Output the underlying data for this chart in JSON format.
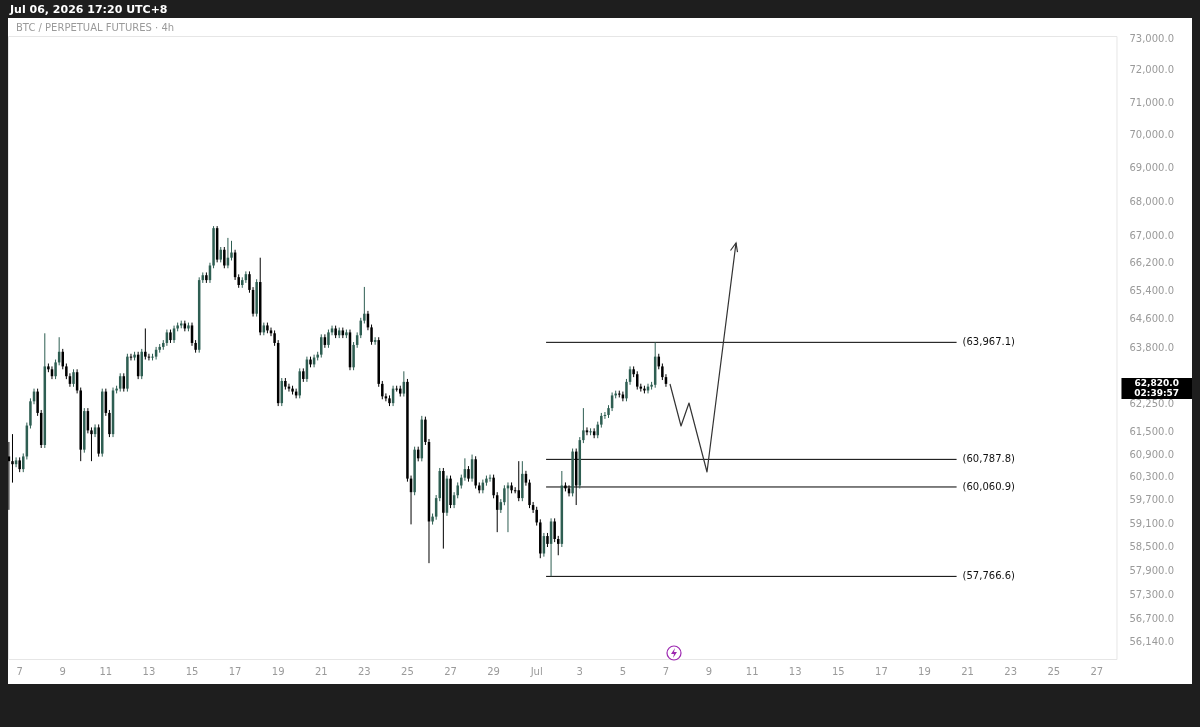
{
  "chart_data": {
    "type": "candlestick",
    "title": "BTC / PERPETUAL FUTURES · 4h",
    "subtitle": "Jul 06, 2026 17:20 UTC+8",
    "log": "y",
    "xlim": [
      "2026-06-06T11:00",
      "2026-07-27T23:00"
    ],
    "xticks": [
      {
        "value": "2026-06-07",
        "label": "7"
      },
      {
        "value": "2026-06-09",
        "label": "9"
      },
      {
        "value": "2026-06-11",
        "label": "11"
      },
      {
        "value": "2026-06-13",
        "label": "13"
      },
      {
        "value": "2026-06-15",
        "label": "15"
      },
      {
        "value": "2026-06-17",
        "label": "17"
      },
      {
        "value": "2026-06-19",
        "label": "19"
      },
      {
        "value": "2026-06-21",
        "label": "21"
      },
      {
        "value": "2026-06-23",
        "label": "23"
      },
      {
        "value": "2026-06-25",
        "label": "25"
      },
      {
        "value": "2026-06-27",
        "label": "27"
      },
      {
        "value": "2026-06-29",
        "label": "29"
      },
      {
        "value": "2026-07-01",
        "label": "Jul"
      },
      {
        "value": "2026-07-03",
        "label": "3"
      },
      {
        "value": "2026-07-05",
        "label": "5"
      },
      {
        "value": "2026-07-07",
        "label": "7"
      },
      {
        "value": "2026-07-09",
        "label": "9"
      },
      {
        "value": "2026-07-11",
        "label": "11"
      },
      {
        "value": "2026-07-13",
        "label": "13"
      },
      {
        "value": "2026-07-15",
        "label": "15"
      },
      {
        "value": "2026-07-17",
        "label": "17"
      },
      {
        "value": "2026-07-19",
        "label": "19"
      },
      {
        "value": "2026-07-21",
        "label": "21"
      },
      {
        "value": "2026-07-23",
        "label": "23"
      },
      {
        "value": "2026-07-25",
        "label": "25"
      },
      {
        "value": "2026-07-27",
        "label": "27"
      }
    ],
    "ylim": [
      55700,
      73100
    ],
    "yticks": [
      {
        "value": 73000,
        "label": "73,000.0"
      },
      {
        "value": 72000,
        "label": "72,000.0"
      },
      {
        "value": 71000,
        "label": "71,000.0"
      },
      {
        "value": 70000,
        "label": "70,000.0"
      },
      {
        "value": 69000,
        "label": "69,000.0"
      },
      {
        "value": 68000,
        "label": "68,000.0"
      },
      {
        "value": 67000,
        "label": "67,000.0"
      },
      {
        "value": 66200,
        "label": "66,200.0"
      },
      {
        "value": 65400,
        "label": "65,400.0"
      },
      {
        "value": 64600,
        "label": "64,600.0"
      },
      {
        "value": 63800,
        "label": "63,800.0"
      },
      {
        "value": 62250,
        "label": "62,250.0"
      },
      {
        "value": 61500,
        "label": "61,500.0"
      },
      {
        "value": 60900,
        "label": "60,900.0"
      },
      {
        "value": 60300,
        "label": "60,300.0"
      },
      {
        "value": 59700,
        "label": "59,700.0"
      },
      {
        "value": 59100,
        "label": "59,100.0"
      },
      {
        "value": 58500,
        "label": "58,500.0"
      },
      {
        "value": 57900,
        "label": "57,900.0"
      },
      {
        "value": 57300,
        "label": "57,300.0"
      },
      {
        "value": 56700,
        "label": "56,700.0"
      },
      {
        "value": 56140,
        "label": "56,140.0"
      }
    ],
    "ref_lines": [
      {
        "axis": "y",
        "value": 63967.1,
        "label": "(63,967.1)",
        "color": "#000000"
      },
      {
        "axis": "y",
        "value": 60787.8,
        "label": "(60,787.8)",
        "color": "#000000"
      },
      {
        "axis": "y",
        "value": 60060.9,
        "label": "(60,060.9)",
        "color": "#000000"
      },
      {
        "axis": "y",
        "value": 57766.6,
        "label": "(57,766.6)",
        "color": "#000000"
      }
    ],
    "annotations": [
      "62,820.0",
      "02:39:57"
    ],
    "series": [
      {
        "x": [
          "2026-06-06T12:00",
          "2026-06-06T16:00",
          "2026-06-06T20:00",
          "2026-06-07T00:00",
          "2026-06-07T04:00",
          "2026-06-07T08:00",
          "2026-06-07T12:00",
          "2026-06-07T16:00",
          "2026-06-07T20:00",
          "2026-06-08T00:00",
          "2026-06-08T04:00",
          "2026-06-08T08:00",
          "2026-06-08T12:00",
          "2026-06-08T16:00",
          "2026-06-08T20:00",
          "2026-06-09T00:00",
          "2026-06-09T04:00",
          "2026-06-09T08:00",
          "2026-06-09T12:00",
          "2026-06-09T16:00",
          "2026-06-09T20:00",
          "2026-06-10T00:00",
          "2026-06-10T04:00",
          "2026-06-10T08:00",
          "2026-06-10T12:00",
          "2026-06-10T16:00",
          "2026-06-10T20:00",
          "2026-06-11T00:00",
          "2026-06-11T04:00",
          "2026-06-11T08:00",
          "2026-06-11T12:00",
          "2026-06-11T16:00",
          "2026-06-11T20:00",
          "2026-06-12T00:00",
          "2026-06-12T04:00",
          "2026-06-12T08:00",
          "2026-06-12T12:00",
          "2026-06-12T16:00",
          "2026-06-12T20:00",
          "2026-06-13T00:00",
          "2026-06-13T04:00",
          "2026-06-13T08:00",
          "2026-06-13T12:00",
          "2026-06-13T16:00",
          "2026-06-13T20:00",
          "2026-06-14T00:00",
          "2026-06-14T04:00",
          "2026-06-14T08:00",
          "2026-06-14T12:00",
          "2026-06-14T16:00",
          "2026-06-14T20:00",
          "2026-06-15T00:00",
          "2026-06-15T04:00",
          "2026-06-15T08:00",
          "2026-06-15T12:00",
          "2026-06-15T16:00",
          "2026-06-15T20:00",
          "2026-06-16T00:00",
          "2026-06-16T04:00",
          "2026-06-16T08:00",
          "2026-06-16T12:00",
          "2026-06-16T16:00",
          "2026-06-16T20:00",
          "2026-06-17T00:00",
          "2026-06-17T04:00",
          "2026-06-17T08:00",
          "2026-06-17T12:00",
          "2026-06-17T16:00",
          "2026-06-17T20:00",
          "2026-06-18T00:00",
          "2026-06-18T04:00",
          "2026-06-18T08:00",
          "2026-06-18T12:00",
          "2026-06-18T16:00",
          "2026-06-18T20:00",
          "2026-06-19T00:00",
          "2026-06-19T04:00",
          "2026-06-19T08:00",
          "2026-06-19T12:00",
          "2026-06-19T16:00",
          "2026-06-19T20:00",
          "2026-06-20T00:00",
          "2026-06-20T04:00",
          "2026-06-20T08:00",
          "2026-06-20T12:00",
          "2026-06-20T16:00",
          "2026-06-20T20:00",
          "2026-06-21T00:00",
          "2026-06-21T04:00",
          "2026-06-21T08:00",
          "2026-06-21T12:00",
          "2026-06-21T16:00",
          "2026-06-21T20:00",
          "2026-06-22T00:00",
          "2026-06-22T04:00",
          "2026-06-22T08:00",
          "2026-06-22T12:00",
          "2026-06-22T16:00",
          "2026-06-22T20:00",
          "2026-06-23T00:00",
          "2026-06-23T04:00",
          "2026-06-23T08:00",
          "2026-06-23T12:00",
          "2026-06-23T16:00",
          "2026-06-23T20:00",
          "2026-06-24T00:00",
          "2026-06-24T04:00",
          "2026-06-24T08:00",
          "2026-06-24T12:00",
          "2026-06-24T16:00",
          "2026-06-24T20:00",
          "2026-06-25T00:00",
          "2026-06-25T04:00",
          "2026-06-25T08:00",
          "2026-06-25T12:00",
          "2026-06-25T16:00",
          "2026-06-25T20:00",
          "2026-06-26T00:00",
          "2026-06-26T04:00",
          "2026-06-26T08:00",
          "2026-06-26T12:00",
          "2026-06-26T16:00",
          "2026-06-26T20:00",
          "2026-06-27T00:00",
          "2026-06-27T04:00",
          "2026-06-27T08:00",
          "2026-06-27T12:00",
          "2026-06-27T16:00",
          "2026-06-27T20:00",
          "2026-06-28T00:00",
          "2026-06-28T04:00",
          "2026-06-28T08:00",
          "2026-06-28T12:00",
          "2026-06-28T16:00",
          "2026-06-28T20:00",
          "2026-06-29T00:00",
          "2026-06-29T04:00",
          "2026-06-29T08:00",
          "2026-06-29T12:00",
          "2026-06-29T16:00",
          "2026-06-29T20:00",
          "2026-06-30T00:00",
          "2026-06-30T04:00",
          "2026-06-30T08:00",
          "2026-06-30T12:00",
          "2026-06-30T16:00",
          "2026-06-30T20:00",
          "2026-07-01T00:00",
          "2026-07-01T04:00",
          "2026-07-01T08:00",
          "2026-07-01T12:00",
          "2026-07-01T16:00",
          "2026-07-01T20:00",
          "2026-07-02T00:00",
          "2026-07-02T04:00",
          "2026-07-02T08:00",
          "2026-07-02T12:00",
          "2026-07-02T16:00",
          "2026-07-02T20:00",
          "2026-07-03T00:00",
          "2026-07-03T04:00",
          "2026-07-03T08:00",
          "2026-07-03T12:00",
          "2026-07-03T16:00",
          "2026-07-03T20:00",
          "2026-07-04T00:00",
          "2026-07-04T04:00",
          "2026-07-04T08:00",
          "2026-07-04T12:00",
          "2026-07-04T16:00",
          "2026-07-04T20:00",
          "2026-07-05T00:00",
          "2026-07-05T04:00",
          "2026-07-05T08:00",
          "2026-07-05T12:00",
          "2026-07-05T16:00",
          "2026-07-05T20:00",
          "2026-07-06T00:00",
          "2026-07-06T04:00",
          "2026-07-06T08:00",
          "2026-07-06T12:00",
          "2026-07-06T16:00",
          "2026-07-06T20:00",
          "2026-07-07T00:00"
        ],
        "ohlc": [
          [
            60865,
            61250,
            59465,
            60740
          ],
          [
            60740,
            61460,
            60175,
            60660
          ],
          [
            60660,
            60840,
            60580,
            60760
          ],
          [
            60760,
            60840,
            60450,
            60530
          ],
          [
            60530,
            60945,
            60450,
            60865
          ],
          [
            60865,
            61770,
            60785,
            61690
          ],
          [
            61690,
            62425,
            61610,
            62345
          ],
          [
            62345,
            62690,
            62265,
            62610
          ],
          [
            62610,
            62690,
            61950,
            62030
          ],
          [
            62030,
            62110,
            61090,
            61170
          ],
          [
            61170,
            64220,
            61090,
            63300
          ],
          [
            63300,
            63380,
            63140,
            63220
          ],
          [
            63220,
            63300,
            62950,
            63030
          ],
          [
            63030,
            63490,
            62950,
            63410
          ],
          [
            63410,
            64110,
            63330,
            63705
          ],
          [
            63705,
            63785,
            63220,
            63300
          ],
          [
            63300,
            63380,
            62950,
            63030
          ],
          [
            63030,
            63110,
            62740,
            62820
          ],
          [
            62820,
            63220,
            62740,
            63140
          ],
          [
            63140,
            63220,
            62560,
            62640
          ],
          [
            62640,
            62720,
            60740,
            61045
          ],
          [
            61045,
            62160,
            60965,
            62080
          ],
          [
            62080,
            62160,
            61480,
            61560
          ],
          [
            61560,
            61640,
            60740,
            61460
          ],
          [
            61460,
            61720,
            61380,
            61640
          ],
          [
            61640,
            61720,
            60860,
            60940
          ],
          [
            60940,
            62690,
            60860,
            62610
          ],
          [
            62610,
            62690,
            61950,
            62030
          ],
          [
            62030,
            62110,
            61380,
            61460
          ],
          [
            61460,
            62720,
            61380,
            62640
          ],
          [
            62640,
            62770,
            62560,
            62690
          ],
          [
            62690,
            63110,
            62610,
            63030
          ],
          [
            63030,
            63110,
            62610,
            62690
          ],
          [
            62690,
            63650,
            62610,
            63570
          ],
          [
            63570,
            63650,
            63465,
            63545
          ],
          [
            63545,
            63705,
            63465,
            63625
          ],
          [
            63625,
            63705,
            62950,
            63030
          ],
          [
            63030,
            63785,
            62950,
            63705
          ],
          [
            63705,
            64355,
            63490,
            63570
          ],
          [
            63570,
            63650,
            63465,
            63545
          ],
          [
            63545,
            63650,
            63465,
            63570
          ],
          [
            63570,
            63840,
            63490,
            63760
          ],
          [
            63760,
            63920,
            63680,
            63840
          ],
          [
            63840,
            64030,
            63760,
            63950
          ],
          [
            63950,
            64325,
            63870,
            64245
          ],
          [
            64245,
            64325,
            63950,
            64030
          ],
          [
            64030,
            64435,
            63950,
            64355
          ],
          [
            64355,
            64520,
            64275,
            64440
          ],
          [
            64440,
            64575,
            64360,
            64495
          ],
          [
            64495,
            64575,
            64275,
            64355
          ],
          [
            64355,
            64520,
            64275,
            64440
          ],
          [
            64440,
            64520,
            63870,
            63950
          ],
          [
            63950,
            64030,
            63680,
            63760
          ],
          [
            63760,
            65805,
            63680,
            65725
          ],
          [
            65725,
            65945,
            65645,
            65865
          ],
          [
            65865,
            65945,
            65645,
            65725
          ],
          [
            65725,
            66225,
            65645,
            66145
          ],
          [
            66145,
            67290,
            66065,
            67230
          ],
          [
            67230,
            67290,
            66235,
            66315
          ],
          [
            66315,
            66680,
            66235,
            66600
          ],
          [
            66600,
            66680,
            66065,
            66145
          ],
          [
            66145,
            66945,
            66065,
            66370
          ],
          [
            66370,
            66860,
            66290,
            66520
          ],
          [
            66520,
            66600,
            65730,
            65810
          ],
          [
            65810,
            65890,
            65505,
            65585
          ],
          [
            65585,
            65805,
            65505,
            65725
          ],
          [
            65725,
            65975,
            65645,
            65895
          ],
          [
            65895,
            65975,
            65365,
            65445
          ],
          [
            65445,
            65525,
            64690,
            64770
          ],
          [
            64770,
            65750,
            64690,
            65670
          ],
          [
            65670,
            66370,
            64165,
            64245
          ],
          [
            64245,
            64520,
            64165,
            64440
          ],
          [
            64440,
            64520,
            64220,
            64300
          ],
          [
            64300,
            64380,
            64140,
            64220
          ],
          [
            64220,
            64300,
            63870,
            63950
          ],
          [
            63950,
            64030,
            62215,
            62295
          ],
          [
            62295,
            62980,
            62215,
            62900
          ],
          [
            62900,
            62980,
            62665,
            62745
          ],
          [
            62745,
            62825,
            62610,
            62690
          ],
          [
            62690,
            62770,
            62530,
            62610
          ],
          [
            62610,
            62690,
            62425,
            62505
          ],
          [
            62505,
            63245,
            62425,
            63165
          ],
          [
            63165,
            63245,
            62875,
            62955
          ],
          [
            62955,
            63570,
            62875,
            63490
          ],
          [
            63490,
            63570,
            63275,
            63355
          ],
          [
            63355,
            63625,
            63275,
            63545
          ],
          [
            63545,
            63705,
            63465,
            63625
          ],
          [
            63625,
            64190,
            63545,
            64110
          ],
          [
            64110,
            64190,
            63815,
            63895
          ],
          [
            63895,
            64325,
            63815,
            64245
          ],
          [
            64245,
            64435,
            64165,
            64355
          ],
          [
            64355,
            64435,
            64085,
            64165
          ],
          [
            64165,
            64380,
            64085,
            64300
          ],
          [
            64300,
            64380,
            64085,
            64165
          ],
          [
            64165,
            64325,
            64085,
            64245
          ],
          [
            64245,
            64325,
            63195,
            63275
          ],
          [
            63275,
            63975,
            63195,
            63895
          ],
          [
            63895,
            64245,
            63815,
            64165
          ],
          [
            64165,
            64655,
            64085,
            64575
          ],
          [
            64575,
            65530,
            64495,
            64770
          ],
          [
            64770,
            64850,
            64305,
            64385
          ],
          [
            64385,
            64465,
            63900,
            63980
          ],
          [
            63980,
            64110,
            63900,
            64030
          ],
          [
            64030,
            64110,
            62740,
            62820
          ],
          [
            62820,
            62900,
            62400,
            62480
          ],
          [
            62480,
            62560,
            62345,
            62425
          ],
          [
            62425,
            62505,
            62215,
            62295
          ],
          [
            62295,
            62770,
            62215,
            62690
          ],
          [
            62690,
            62770,
            62610,
            62690
          ],
          [
            62690,
            62770,
            62475,
            62555
          ],
          [
            62555,
            63165,
            62475,
            62875
          ],
          [
            62875,
            62955,
            60200,
            60280
          ],
          [
            60280,
            60360,
            59090,
            59925
          ],
          [
            59925,
            61125,
            59845,
            61045
          ],
          [
            61045,
            61125,
            60735,
            60815
          ],
          [
            60815,
            61950,
            60735,
            61850
          ],
          [
            61850,
            61930,
            61170,
            61250
          ],
          [
            61250,
            61330,
            58100,
            59165
          ],
          [
            59165,
            59370,
            59085,
            59290
          ],
          [
            59290,
            59850,
            59210,
            59770
          ],
          [
            59770,
            60560,
            59690,
            60480
          ],
          [
            60480,
            60560,
            58470,
            59390
          ],
          [
            59390,
            60360,
            59310,
            60280
          ],
          [
            60280,
            60360,
            59510,
            59590
          ],
          [
            59590,
            59925,
            59510,
            59845
          ],
          [
            59845,
            60180,
            59765,
            60100
          ],
          [
            60100,
            60385,
            60020,
            60305
          ],
          [
            60305,
            60815,
            60225,
            60530
          ],
          [
            60530,
            60610,
            60200,
            60280
          ],
          [
            60280,
            60915,
            60200,
            60790
          ],
          [
            60790,
            60870,
            60020,
            60100
          ],
          [
            60100,
            60180,
            59895,
            59975
          ],
          [
            59975,
            60255,
            59895,
            60175
          ],
          [
            60175,
            60360,
            60095,
            60280
          ],
          [
            60280,
            60385,
            60200,
            60305
          ],
          [
            60305,
            60385,
            59765,
            59845
          ],
          [
            59845,
            59925,
            58890,
            59465
          ],
          [
            59465,
            59745,
            59385,
            59665
          ],
          [
            59665,
            60105,
            59585,
            60025
          ],
          [
            60025,
            60180,
            58890,
            60100
          ],
          [
            60100,
            60180,
            59895,
            59975
          ],
          [
            59975,
            60055,
            59895,
            59975
          ],
          [
            59975,
            60740,
            59690,
            59770
          ],
          [
            59770,
            60740,
            59690,
            60405
          ],
          [
            60405,
            60485,
            60095,
            60175
          ],
          [
            60175,
            60255,
            59510,
            59590
          ],
          [
            59590,
            59670,
            59385,
            59465
          ],
          [
            59465,
            59545,
            59060,
            59140
          ],
          [
            59140,
            59220,
            58225,
            58345
          ],
          [
            58345,
            58870,
            58265,
            58790
          ],
          [
            58790,
            58870,
            58510,
            58590
          ],
          [
            58590,
            59245,
            57766.6,
            59165
          ],
          [
            59165,
            59245,
            58635,
            58715
          ],
          [
            58715,
            58795,
            58300,
            58590
          ],
          [
            58590,
            60480,
            58510,
            60100
          ],
          [
            60100,
            60180,
            59945,
            60025
          ],
          [
            60025,
            60105,
            59815,
            59895
          ],
          [
            59895,
            61075,
            59815,
            60995
          ],
          [
            60995,
            61075,
            59590,
            60100
          ],
          [
            60100,
            61380,
            60020,
            61300
          ],
          [
            61300,
            62160,
            61220,
            61560
          ],
          [
            61560,
            61640,
            61430,
            61510
          ],
          [
            61510,
            61615,
            61430,
            61535
          ],
          [
            61535,
            61615,
            61350,
            61430
          ],
          [
            61430,
            61795,
            61350,
            61715
          ],
          [
            61715,
            62030,
            61635,
            61950
          ],
          [
            61950,
            62055,
            61870,
            61975
          ],
          [
            61975,
            62240,
            61895,
            62160
          ],
          [
            62160,
            62585,
            62080,
            62505
          ],
          [
            62505,
            62635,
            62425,
            62555
          ],
          [
            62555,
            62635,
            62450,
            62530
          ],
          [
            62530,
            62610,
            62345,
            62425
          ],
          [
            62425,
            62955,
            62345,
            62875
          ],
          [
            62875,
            63300,
            62795,
            63220
          ],
          [
            63220,
            63300,
            63005,
            63085
          ],
          [
            63085,
            63165,
            62665,
            62745
          ],
          [
            62745,
            62825,
            62610,
            62690
          ],
          [
            62690,
            62770,
            62560,
            62640
          ],
          [
            62640,
            62825,
            62560,
            62745
          ],
          [
            62745,
            62875,
            62665,
            62795
          ],
          [
            62795,
            63967.1,
            62715,
            63570
          ],
          [
            63570,
            63650,
            63220,
            63300
          ],
          [
            63300,
            63380,
            62925,
            63005
          ],
          [
            63005,
            63085,
            62740,
            62820
          ]
        ],
        "colors": [
          "#000000",
          "#000000",
          "#2e5e52",
          "#000000",
          "#2e5e52",
          "#2e5e52",
          "#2e5e52",
          "#2e5e52",
          "#000000",
          "#000000",
          "#2e5e52",
          "#000000",
          "#000000",
          "#2e5e52",
          "#2e5e52",
          "#000000",
          "#000000",
          "#000000",
          "#2e5e52",
          "#000000",
          "#000000",
          "#2e5e52",
          "#000000",
          "#000000",
          "#2e5e52",
          "#000000",
          "#2e5e52",
          "#000000",
          "#000000",
          "#2e5e52",
          "#2e5e52",
          "#2e5e52",
          "#000000",
          "#2e5e52",
          "#000000",
          "#2e5e52",
          "#000000",
          "#2e5e52",
          "#000000",
          "#000000",
          "#2e5e52",
          "#2e5e52",
          "#2e5e52",
          "#2e5e52",
          "#2e5e52",
          "#000000",
          "#2e5e52",
          "#2e5e52",
          "#2e5e52",
          "#000000",
          "#2e5e52",
          "#000000",
          "#000000",
          "#2e5e52",
          "#2e5e52",
          "#000000",
          "#2e5e52",
          "#2e5e52",
          "#000000",
          "#2e5e52",
          "#000000",
          "#2e5e52",
          "#2e5e52",
          "#000000",
          "#000000",
          "#2e5e52",
          "#2e5e52",
          "#000000",
          "#000000",
          "#2e5e52",
          "#000000",
          "#2e5e52",
          "#000000",
          "#000000",
          "#000000",
          "#000000",
          "#2e5e52",
          "#000000",
          "#000000",
          "#000000",
          "#000000",
          "#2e5e52",
          "#000000",
          "#2e5e52",
          "#000000",
          "#2e5e52",
          "#2e5e52",
          "#2e5e52",
          "#000000",
          "#2e5e52",
          "#2e5e52",
          "#000000",
          "#2e5e52",
          "#000000",
          "#2e5e52",
          "#000000",
          "#2e5e52",
          "#2e5e52",
          "#2e5e52",
          "#2e5e52",
          "#000000",
          "#000000",
          "#2e5e52",
          "#000000",
          "#000000",
          "#000000",
          "#000000",
          "#2e5e52",
          "#000000",
          "#000000",
          "#2e5e52",
          "#000000",
          "#000000",
          "#2e5e52",
          "#000000",
          "#2e5e52",
          "#000000",
          "#000000",
          "#2e5e52",
          "#2e5e52",
          "#2e5e52",
          "#000000",
          "#2e5e52",
          "#000000",
          "#2e5e52",
          "#2e5e52",
          "#2e5e52",
          "#2e5e52",
          "#000000",
          "#2e5e52",
          "#000000",
          "#000000",
          "#2e5e52",
          "#2e5e52",
          "#2e5e52",
          "#000000",
          "#000000",
          "#2e5e52",
          "#2e5e52",
          "#2e5e52",
          "#000000",
          "#000000",
          "#000000",
          "#2e5e52",
          "#000000",
          "#000000",
          "#000000",
          "#000000",
          "#000000",
          "#2e5e52",
          "#000000",
          "#2e5e52",
          "#000000",
          "#000000",
          "#2e5e52",
          "#000000",
          "#000000",
          "#2e5e52",
          "#000000",
          "#2e5e52",
          "#2e5e52",
          "#000000",
          "#2e5e52",
          "#000000",
          "#2e5e52",
          "#2e5e52",
          "#2e5e52",
          "#2e5e52",
          "#2e5e52",
          "#2e5e52",
          "#000000",
          "#000000",
          "#2e5e52",
          "#2e5e52",
          "#000000",
          "#000000",
          "#000000",
          "#000000",
          "#2e5e52",
          "#2e5e52",
          "#2e5e52",
          "#000000",
          "#000000",
          "#000000"
        ]
      }
    ]
  }
}
